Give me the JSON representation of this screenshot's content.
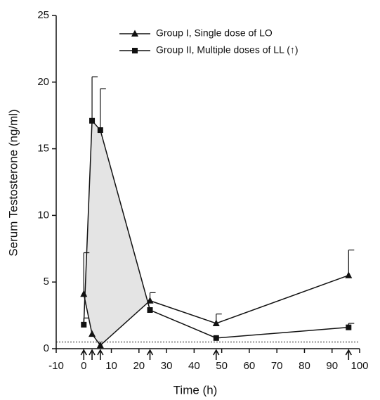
{
  "chart_data": {
    "type": "line",
    "x_label": "Time (h)",
    "y_label": "Serum Testosterone (ng/ml)",
    "x": [
      0,
      3,
      6,
      24,
      48,
      96
    ],
    "series": [
      {
        "name": "Group I, Single dose of LO",
        "color": "#111111",
        "marker": "triangle",
        "values": [
          4.1,
          1.1,
          0.25,
          3.6,
          1.9,
          5.5
        ],
        "errors": [
          3.1,
          null,
          null,
          0.6,
          0.7,
          1.9
        ]
      },
      {
        "name": "Group II, Multiple doses of LL (↑)",
        "color": "#111111",
        "marker": "square",
        "values": [
          1.8,
          17.1,
          16.4,
          2.9,
          0.8,
          1.6
        ],
        "errors": [
          0.5,
          3.3,
          3.1,
          null,
          null,
          0.3
        ]
      }
    ],
    "dose_times": [
      0,
      3,
      6,
      24,
      48,
      96
    ],
    "reference_line": 0.5,
    "xlim": [
      -10,
      100
    ],
    "xticks": [
      -10,
      0,
      10,
      20,
      30,
      40,
      50,
      60,
      70,
      80,
      90,
      100
    ],
    "ylim": [
      0,
      25
    ],
    "yticks": [
      0,
      5,
      10,
      15,
      20,
      25
    ],
    "legend": "upper right",
    "grid": false
  }
}
